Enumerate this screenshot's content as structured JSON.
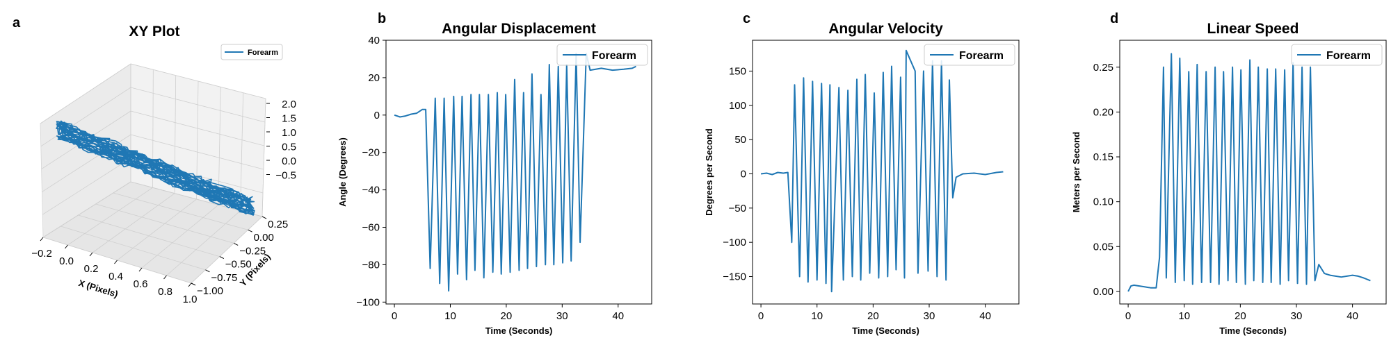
{
  "colors": {
    "series": "#1f77b4"
  },
  "chart_data": [
    {
      "type": "line3d",
      "panel": "a",
      "title": "XY Plot",
      "xlabel": "X (Pixels)",
      "ylabel": "Y (Pixels)",
      "zlabel": "",
      "xlim": [
        -0.2,
        1.0
      ],
      "ylim": [
        -1.0,
        0.25
      ],
      "zlim": [
        -0.5,
        2.0
      ],
      "xticks": [
        "−0.2",
        "0.0",
        "0.2",
        "0.4",
        "0.6",
        "0.8",
        "1.0"
      ],
      "yticks": [
        "−1.00",
        "−0.75",
        "−0.50",
        "−0.25",
        "0.00",
        "0.25"
      ],
      "zticks": [
        "2.0",
        "1.5",
        "1.0",
        "0.5",
        "0.0",
        "−0.5"
      ],
      "legend": "top-right",
      "series": [
        {
          "name": "Forearm",
          "description": "forearm trajectory oscillating along X from about 0 to 0.9 with Y from about 0.2 to -0.9, Z near 0"
        }
      ]
    },
    {
      "type": "line",
      "panel": "b",
      "title": "Angular Displacement",
      "xlabel": "Time (Seconds)",
      "ylabel": "Angle (Degrees)",
      "xlim": [
        -1.5,
        46
      ],
      "ylim": [
        -101,
        40
      ],
      "xticks": [
        "0",
        "10",
        "20",
        "30",
        "40"
      ],
      "yticks": [
        "40",
        "20",
        "0",
        "−20",
        "−40",
        "−60",
        "−80",
        "−100"
      ],
      "legend": "top-right",
      "series": [
        {
          "name": "Forearm",
          "baseline_before": [
            [
              0,
              0
            ],
            [
              1,
              -1
            ],
            [
              2,
              -0.5
            ],
            [
              3,
              0.5
            ],
            [
              4,
              1
            ],
            [
              5,
              3
            ]
          ],
          "peaks": [
            [
              5.6,
              3
            ],
            [
              7.3,
              9
            ],
            [
              8.9,
              9
            ],
            [
              10.6,
              10
            ],
            [
              12.1,
              10
            ],
            [
              13.7,
              11
            ],
            [
              15.2,
              11
            ],
            [
              16.8,
              11
            ],
            [
              18.4,
              12
            ],
            [
              19.9,
              11
            ],
            [
              21.5,
              19
            ],
            [
              23.1,
              12
            ],
            [
              24.6,
              22
            ],
            [
              26.2,
              11
            ],
            [
              27.7,
              27
            ],
            [
              29.3,
              26
            ],
            [
              30.8,
              27
            ],
            [
              32.5,
              33
            ]
          ],
          "troughs": [
            [
              6.4,
              -82
            ],
            [
              8.1,
              -90
            ],
            [
              9.7,
              -94
            ],
            [
              11.3,
              -85
            ],
            [
              12.9,
              -88
            ],
            [
              14.4,
              -83
            ],
            [
              16.0,
              -87
            ],
            [
              17.6,
              -84
            ],
            [
              19.1,
              -85
            ],
            [
              20.7,
              -84
            ],
            [
              22.3,
              -83
            ],
            [
              23.8,
              -82
            ],
            [
              25.4,
              -81
            ],
            [
              27.0,
              -80
            ],
            [
              28.5,
              -80
            ],
            [
              30.1,
              -79
            ],
            [
              31.6,
              -78
            ],
            [
              33.2,
              -68
            ]
          ],
          "baseline_after": [
            [
              34.3,
              33
            ],
            [
              35,
              24
            ],
            [
              37,
              25
            ],
            [
              39,
              24
            ],
            [
              41,
              24.5
            ],
            [
              42.5,
              25
            ],
            [
              43.2,
              26
            ]
          ]
        }
      ]
    },
    {
      "type": "line",
      "panel": "c",
      "title": "Angular Velocity",
      "xlabel": "Time (Seconds)",
      "ylabel": "Degrees per Second",
      "xlim": [
        -1.5,
        46
      ],
      "ylim": [
        -190,
        195
      ],
      "xticks": [
        "0",
        "10",
        "20",
        "30",
        "40"
      ],
      "yticks": [
        "150",
        "100",
        "50",
        "0",
        "−50",
        "−100",
        "−150"
      ],
      "legend": "top-right",
      "series": [
        {
          "name": "Forearm",
          "baseline_before": [
            [
              0,
              0
            ],
            [
              1,
              1
            ],
            [
              2,
              -1
            ],
            [
              3,
              2
            ],
            [
              4,
              1
            ],
            [
              4.8,
              2
            ]
          ],
          "peaks": [
            [
              6.0,
              130
            ],
            [
              7.6,
              140
            ],
            [
              9.2,
              135
            ],
            [
              10.8,
              132
            ],
            [
              12.3,
              130
            ],
            [
              13.9,
              126
            ],
            [
              15.5,
              122
            ],
            [
              17.1,
              138
            ],
            [
              18.6,
              145
            ],
            [
              20.2,
              118
            ],
            [
              21.8,
              148
            ],
            [
              23.3,
              157
            ],
            [
              24.9,
              141
            ],
            [
              25.9,
              180
            ],
            [
              27.5,
              150
            ],
            [
              29.0,
              150
            ],
            [
              30.6,
              165
            ],
            [
              32.2,
              165
            ],
            [
              33.6,
              137
            ]
          ],
          "troughs": [
            [
              5.5,
              -100
            ],
            [
              6.9,
              -150
            ],
            [
              8.4,
              -158
            ],
            [
              10.0,
              -155
            ],
            [
              11.6,
              -160
            ],
            [
              12.6,
              -172
            ],
            [
              14.7,
              -155
            ],
            [
              16.3,
              -150
            ],
            [
              17.8,
              -155
            ],
            [
              19.4,
              -145
            ],
            [
              21.0,
              -152
            ],
            [
              22.6,
              -150
            ],
            [
              24.1,
              -140
            ],
            [
              25.6,
              -152
            ],
            [
              28.0,
              -145
            ],
            [
              29.8,
              -142
            ],
            [
              31.4,
              -150
            ],
            [
              33.0,
              -155
            ],
            [
              34.2,
              -35
            ]
          ],
          "baseline_after": [
            [
              34.8,
              -5
            ],
            [
              36,
              0
            ],
            [
              38,
              1
            ],
            [
              40,
              -1
            ],
            [
              42,
              2
            ],
            [
              43.2,
              3
            ]
          ]
        }
      ]
    },
    {
      "type": "line",
      "panel": "d",
      "title": "Linear Speed",
      "xlabel": "Time (Seconds)",
      "ylabel": "Meters per Second",
      "xlim": [
        -1.5,
        46
      ],
      "ylim": [
        -0.014,
        0.28
      ],
      "xticks": [
        "0",
        "10",
        "20",
        "30",
        "40"
      ],
      "yticks": [
        "0.25",
        "0.20",
        "0.15",
        "0.10",
        "0.05",
        "0.00"
      ],
      "legend": "top-right",
      "series": [
        {
          "name": "Forearm",
          "baseline_before": [
            [
              0,
              0
            ],
            [
              0.5,
              0.006
            ],
            [
              1,
              0.007
            ],
            [
              2,
              0.006
            ],
            [
              3,
              0.005
            ],
            [
              4,
              0.004
            ],
            [
              5,
              0.004
            ]
          ],
          "peaks": [
            [
              6.3,
              0.25
            ],
            [
              7.1,
              0.105
            ],
            [
              7.7,
              0.265
            ],
            [
              9.2,
              0.26
            ],
            [
              10.8,
              0.245
            ],
            [
              12.3,
              0.253
            ],
            [
              13.9,
              0.245
            ],
            [
              15.5,
              0.25
            ],
            [
              17.0,
              0.245
            ],
            [
              18.6,
              0.25
            ],
            [
              20.1,
              0.247
            ],
            [
              21.7,
              0.258
            ],
            [
              23.2,
              0.25
            ],
            [
              24.8,
              0.248
            ],
            [
              26.3,
              0.248
            ],
            [
              27.9,
              0.247
            ],
            [
              29.4,
              0.255
            ],
            [
              31.0,
              0.25
            ],
            [
              32.5,
              0.25
            ]
          ],
          "troughs": [
            [
              5.6,
              0.038
            ],
            [
              6.8,
              0.015
            ],
            [
              8.4,
              0.01
            ],
            [
              10.0,
              0.012
            ],
            [
              11.5,
              0.008
            ],
            [
              13.1,
              0.01
            ],
            [
              14.7,
              0.01
            ],
            [
              16.2,
              0.008
            ],
            [
              17.8,
              0.012
            ],
            [
              19.3,
              0.01
            ],
            [
              20.9,
              0.008
            ],
            [
              22.4,
              0.012
            ],
            [
              24.0,
              0.01
            ],
            [
              25.5,
              0.01
            ],
            [
              27.1,
              0.008
            ],
            [
              28.6,
              0.012
            ],
            [
              30.2,
              0.009
            ],
            [
              31.8,
              0.008
            ],
            [
              33.3,
              0.012
            ]
          ],
          "baseline_after": [
            [
              34.0,
              0.03
            ],
            [
              35,
              0.02
            ],
            [
              36,
              0.018
            ],
            [
              38,
              0.016
            ],
            [
              40,
              0.018
            ],
            [
              41,
              0.017
            ],
            [
              42,
              0.015
            ],
            [
              43.2,
              0.012
            ]
          ]
        }
      ]
    }
  ]
}
